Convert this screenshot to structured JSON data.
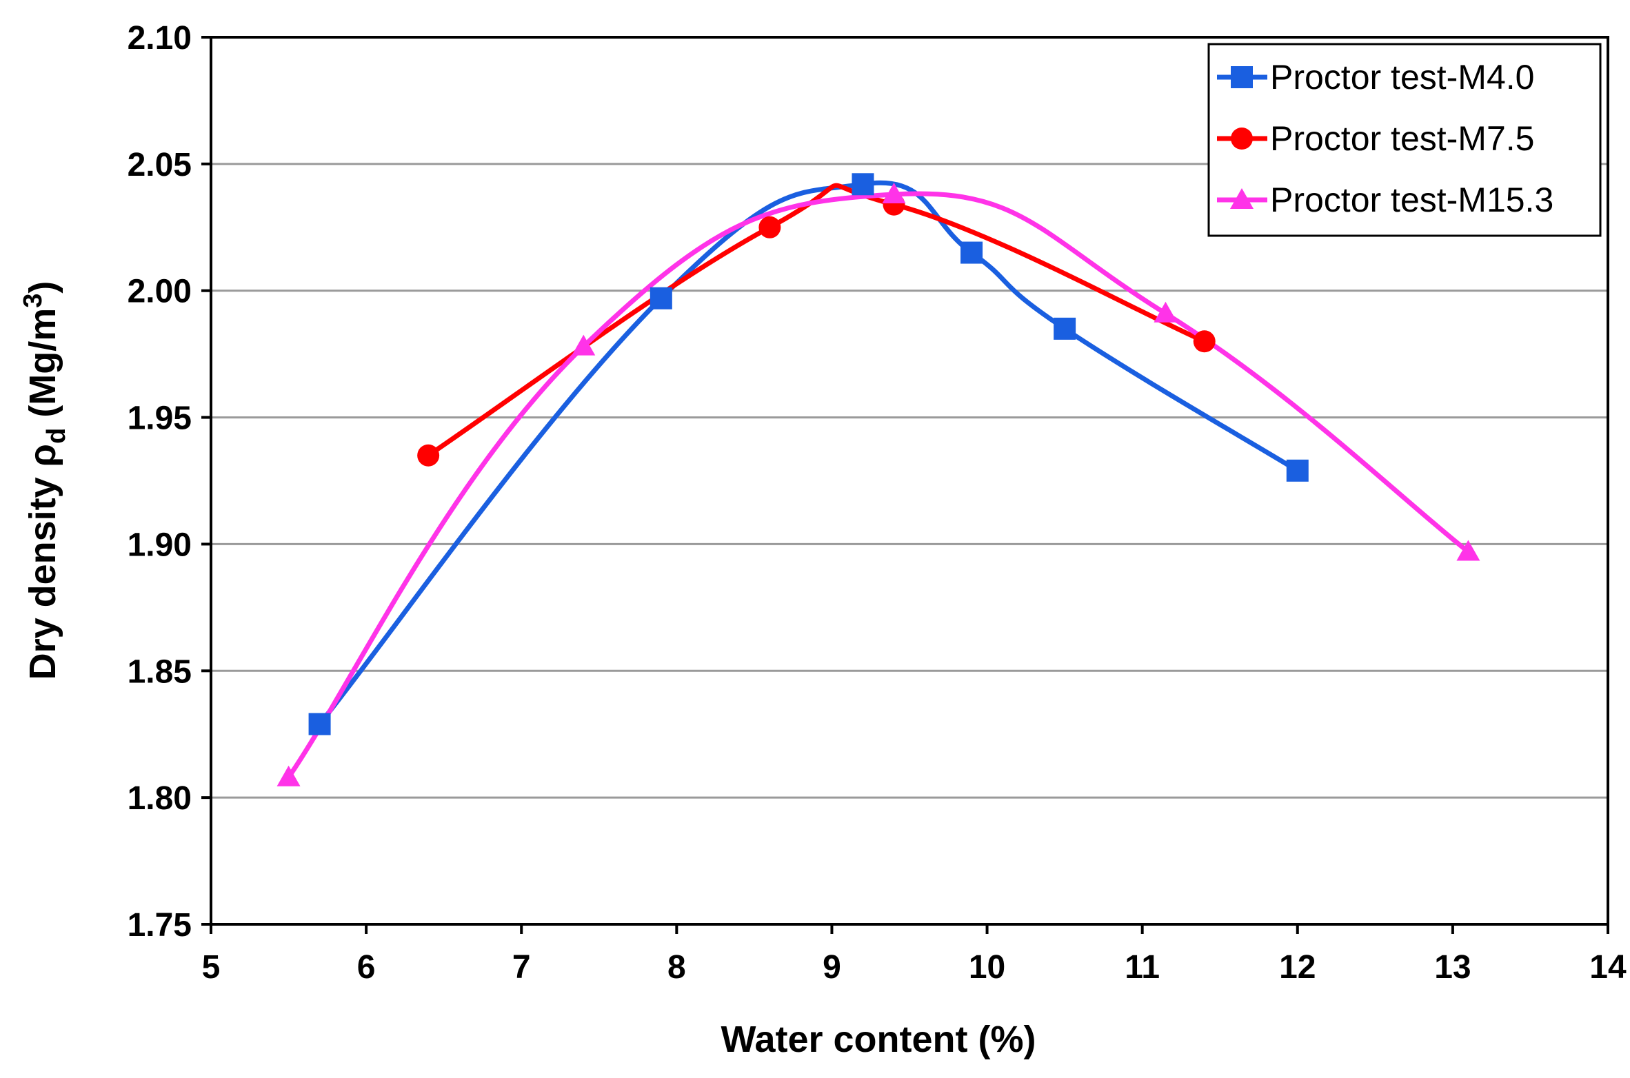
{
  "chart_data": {
    "type": "line",
    "title": "",
    "xlabel": "Water content (%)",
    "ylabel_parts": {
      "prefix": "Dry density ρ",
      "subscript": "d",
      "unit_open": " (Mg/m",
      "superscript": "3",
      "unit_close": ")"
    },
    "xlim": [
      5,
      14
    ],
    "ylim": [
      1.75,
      2.1
    ],
    "xticks": [
      "5",
      "6",
      "7",
      "8",
      "9",
      "10",
      "11",
      "12",
      "13",
      "14"
    ],
    "yticks": [
      "1.75",
      "1.80",
      "1.85",
      "1.90",
      "1.95",
      "2.00",
      "2.05",
      "2.10"
    ],
    "grid": "horizontal",
    "legend_position": "top-right",
    "series": [
      {
        "name": "Proctor test-M4.0",
        "color": "#1a5fe0",
        "marker": "square",
        "x": [
          5.7,
          7.9,
          9.2,
          9.9,
          10.5,
          12.0
        ],
        "y": [
          1.829,
          1.997,
          2.042,
          2.015,
          1.985,
          1.929
        ]
      },
      {
        "name": "Proctor test-M7.5",
        "color": "#ff0000",
        "marker": "circle",
        "x": [
          6.4,
          8.6,
          9.4,
          11.4
        ],
        "y": [
          1.935,
          2.025,
          2.034,
          1.98
        ]
      },
      {
        "name": "Proctor test-M15.3",
        "color": "#ff33e8",
        "marker": "triangle",
        "x": [
          5.5,
          7.4,
          9.4,
          11.15,
          13.1
        ],
        "y": [
          1.808,
          1.978,
          2.038,
          1.991,
          1.897
        ]
      }
    ]
  }
}
